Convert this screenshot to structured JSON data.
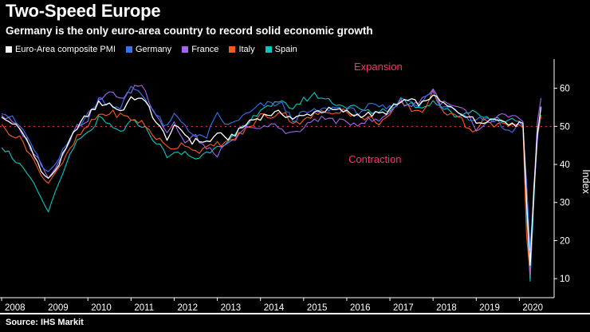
{
  "source": {
    "text": "Source: IHS Markit"
  },
  "chart_data": {
    "type": "line",
    "title": "Two-Speed Europe",
    "subtitle": "Germany is the only euro-area country to record solid economic growth",
    "ylabel": "Index",
    "ylim": [
      5,
      66
    ],
    "xlim": [
      2008,
      2020.75
    ],
    "yticks": [
      10,
      20,
      30,
      40,
      50,
      60
    ],
    "xticks": [
      2008,
      2009,
      2010,
      2011,
      2012,
      2013,
      2014,
      2015,
      2016,
      2017,
      2018,
      2019,
      2020
    ],
    "grid": false,
    "legend_position": "top",
    "refline": {
      "y": 50,
      "color": "#ff2e6e",
      "style": "dotted",
      "label_above": "Expansion",
      "label_below": "Contraction"
    },
    "series": [
      {
        "name": "Euro-Area composite PMI",
        "color": "#ffffff",
        "points": [
          [
            2008.0,
            52
          ],
          [
            2008.25,
            51
          ],
          [
            2008.5,
            48
          ],
          [
            2008.75,
            43
          ],
          [
            2008.92,
            38
          ],
          [
            2009.08,
            36.2
          ],
          [
            2009.25,
            38.5
          ],
          [
            2009.5,
            44
          ],
          [
            2009.75,
            50
          ],
          [
            2010.0,
            53
          ],
          [
            2010.25,
            56
          ],
          [
            2010.5,
            56
          ],
          [
            2010.75,
            54
          ],
          [
            2011.0,
            57
          ],
          [
            2011.17,
            57.8
          ],
          [
            2011.42,
            55
          ],
          [
            2011.58,
            51
          ],
          [
            2011.83,
            47
          ],
          [
            2012.0,
            49.5
          ],
          [
            2012.17,
            49
          ],
          [
            2012.42,
            46
          ],
          [
            2012.58,
            46.3
          ],
          [
            2012.83,
            45.8
          ],
          [
            2013.0,
            48.6
          ],
          [
            2013.17,
            46.5
          ],
          [
            2013.5,
            48.7
          ],
          [
            2013.75,
            51.5
          ],
          [
            2013.92,
            52.1
          ],
          [
            2014.17,
            53.2
          ],
          [
            2014.5,
            53.5
          ],
          [
            2014.75,
            52.1
          ],
          [
            2015.0,
            52.6
          ],
          [
            2015.25,
            53.9
          ],
          [
            2015.58,
            54.3
          ],
          [
            2015.92,
            54
          ],
          [
            2016.17,
            53.1
          ],
          [
            2016.5,
            53.1
          ],
          [
            2016.83,
            53.3
          ],
          [
            2017.0,
            54.4
          ],
          [
            2017.33,
            56.8
          ],
          [
            2017.58,
            56.3
          ],
          [
            2017.83,
            56
          ],
          [
            2018.0,
            58.8
          ],
          [
            2018.08,
            57.1
          ],
          [
            2018.33,
            55.2
          ],
          [
            2018.5,
            54.3
          ],
          [
            2018.83,
            52.7
          ],
          [
            2019.0,
            51
          ],
          [
            2019.25,
            51.9
          ],
          [
            2019.5,
            51.8
          ],
          [
            2019.67,
            51.9
          ],
          [
            2019.83,
            50.1
          ],
          [
            2020.0,
            51.3
          ],
          [
            2020.08,
            51.6
          ],
          [
            2020.17,
            29.7
          ],
          [
            2020.25,
            13.6
          ],
          [
            2020.33,
            31.9
          ],
          [
            2020.42,
            48.5
          ],
          [
            2020.5,
            54.9
          ],
          [
            2020.58,
            51.9
          ]
        ]
      },
      {
        "name": "Germany",
        "color": "#3276f5",
        "points": [
          [
            2008.0,
            54
          ],
          [
            2008.25,
            52
          ],
          [
            2008.5,
            49
          ],
          [
            2008.75,
            44
          ],
          [
            2008.92,
            39.5
          ],
          [
            2009.08,
            38
          ],
          [
            2009.25,
            40
          ],
          [
            2009.5,
            45
          ],
          [
            2009.75,
            50
          ],
          [
            2010.0,
            53
          ],
          [
            2010.25,
            57
          ],
          [
            2010.5,
            56
          ],
          [
            2010.75,
            55
          ],
          [
            2011.0,
            60
          ],
          [
            2011.17,
            59.5
          ],
          [
            2011.42,
            56
          ],
          [
            2011.58,
            53
          ],
          [
            2011.83,
            49.5
          ],
          [
            2012.0,
            53
          ],
          [
            2012.25,
            50.5
          ],
          [
            2012.5,
            47
          ],
          [
            2012.75,
            47.4
          ],
          [
            2013.0,
            53
          ],
          [
            2013.25,
            50
          ],
          [
            2013.5,
            52
          ],
          [
            2013.75,
            53.5
          ],
          [
            2014.0,
            55.5
          ],
          [
            2014.25,
            56
          ],
          [
            2014.5,
            55.7
          ],
          [
            2014.75,
            51.7
          ],
          [
            2015.0,
            53.5
          ],
          [
            2015.33,
            54
          ],
          [
            2015.75,
            55
          ],
          [
            2016.0,
            54.5
          ],
          [
            2016.25,
            53.6
          ],
          [
            2016.5,
            55.3
          ],
          [
            2016.75,
            55
          ],
          [
            2017.0,
            54.8
          ],
          [
            2017.33,
            57.4
          ],
          [
            2017.67,
            55.8
          ],
          [
            2018.0,
            59
          ],
          [
            2018.17,
            55.1
          ],
          [
            2018.5,
            54.8
          ],
          [
            2018.83,
            52.3
          ],
          [
            2019.0,
            52.1
          ],
          [
            2019.25,
            52.2
          ],
          [
            2019.5,
            51.4
          ],
          [
            2019.67,
            48.9
          ],
          [
            2019.92,
            49.4
          ],
          [
            2020.0,
            51.2
          ],
          [
            2020.08,
            50.7
          ],
          [
            2020.17,
            35
          ],
          [
            2020.25,
            17.4
          ],
          [
            2020.33,
            32.3
          ],
          [
            2020.42,
            47
          ],
          [
            2020.5,
            55.3
          ],
          [
            2020.58,
            54.4
          ]
        ]
      },
      {
        "name": "France",
        "color": "#a465f0",
        "points": [
          [
            2008.0,
            53
          ],
          [
            2008.25,
            51
          ],
          [
            2008.5,
            48
          ],
          [
            2008.75,
            43
          ],
          [
            2008.92,
            40
          ],
          [
            2009.08,
            36.5
          ],
          [
            2009.25,
            39
          ],
          [
            2009.5,
            45
          ],
          [
            2009.75,
            50
          ],
          [
            2010.0,
            52
          ],
          [
            2010.25,
            57
          ],
          [
            2010.58,
            59
          ],
          [
            2010.83,
            57
          ],
          [
            2011.08,
            60.5
          ],
          [
            2011.25,
            61
          ],
          [
            2011.5,
            55
          ],
          [
            2011.83,
            48.5
          ],
          [
            2012.0,
            51
          ],
          [
            2012.25,
            45.5
          ],
          [
            2012.5,
            47.5
          ],
          [
            2012.75,
            44
          ],
          [
            2013.0,
            42.7
          ],
          [
            2013.17,
            44.3
          ],
          [
            2013.5,
            47.4
          ],
          [
            2013.75,
            50.5
          ],
          [
            2014.0,
            48.9
          ],
          [
            2014.25,
            50.6
          ],
          [
            2014.5,
            49.3
          ],
          [
            2014.75,
            48.1
          ],
          [
            2015.0,
            49.3
          ],
          [
            2015.25,
            52
          ],
          [
            2015.58,
            52
          ],
          [
            2015.92,
            51
          ],
          [
            2016.25,
            50.9
          ],
          [
            2016.5,
            51.6
          ],
          [
            2016.75,
            51.4
          ],
          [
            2017.0,
            54.1
          ],
          [
            2017.25,
            56.6
          ],
          [
            2017.5,
            55.2
          ],
          [
            2017.75,
            57.4
          ],
          [
            2018.0,
            59.6
          ],
          [
            2018.17,
            56.3
          ],
          [
            2018.5,
            55
          ],
          [
            2018.75,
            54.1
          ],
          [
            2019.0,
            48.2
          ],
          [
            2019.17,
            50.4
          ],
          [
            2019.42,
            51.2
          ],
          [
            2019.58,
            52.9
          ],
          [
            2019.83,
            52.6
          ],
          [
            2020.0,
            52
          ],
          [
            2020.08,
            52
          ],
          [
            2020.17,
            28.9
          ],
          [
            2020.25,
            11.1
          ],
          [
            2020.33,
            32.1
          ],
          [
            2020.42,
            51.7
          ],
          [
            2020.5,
            57.3
          ],
          [
            2020.58,
            51.6
          ]
        ]
      },
      {
        "name": "Italy",
        "color": "#ff5a14",
        "points": [
          [
            2008.0,
            50
          ],
          [
            2008.25,
            48
          ],
          [
            2008.5,
            46
          ],
          [
            2008.75,
            41
          ],
          [
            2008.92,
            37
          ],
          [
            2009.08,
            35
          ],
          [
            2009.25,
            38
          ],
          [
            2009.5,
            42
          ],
          [
            2009.75,
            47
          ],
          [
            2010.0,
            50
          ],
          [
            2010.25,
            53
          ],
          [
            2010.58,
            53.5
          ],
          [
            2011.0,
            52
          ],
          [
            2011.25,
            51
          ],
          [
            2011.5,
            48
          ],
          [
            2011.83,
            44.5
          ],
          [
            2012.0,
            44.5
          ],
          [
            2012.25,
            45.6
          ],
          [
            2012.5,
            43.5
          ],
          [
            2012.75,
            44.1
          ],
          [
            2013.0,
            45.4
          ],
          [
            2013.25,
            45.8
          ],
          [
            2013.5,
            47.8
          ],
          [
            2013.75,
            49.7
          ],
          [
            2014.0,
            52.9
          ],
          [
            2014.25,
            52.6
          ],
          [
            2014.5,
            53.9
          ],
          [
            2014.75,
            51.2
          ],
          [
            2015.0,
            51.2
          ],
          [
            2015.25,
            53.1
          ],
          [
            2015.58,
            53.8
          ],
          [
            2015.92,
            54.3
          ],
          [
            2016.25,
            52.4
          ],
          [
            2016.5,
            52.2
          ],
          [
            2016.75,
            51.1
          ],
          [
            2017.0,
            52.8
          ],
          [
            2017.25,
            56.2
          ],
          [
            2017.5,
            54.5
          ],
          [
            2017.75,
            53.9
          ],
          [
            2018.0,
            59
          ],
          [
            2018.08,
            56
          ],
          [
            2018.33,
            53.5
          ],
          [
            2018.5,
            53.9
          ],
          [
            2018.83,
            49.3
          ],
          [
            2019.0,
            48.8
          ],
          [
            2019.17,
            51.5
          ],
          [
            2019.42,
            49.9
          ],
          [
            2019.58,
            51
          ],
          [
            2019.83,
            50.8
          ],
          [
            2020.0,
            50.4
          ],
          [
            2020.08,
            50.7
          ],
          [
            2020.17,
            20.2
          ],
          [
            2020.25,
            10.9
          ],
          [
            2020.33,
            33.9
          ],
          [
            2020.42,
            47.6
          ],
          [
            2020.5,
            52.5
          ],
          [
            2020.58,
            49.5
          ]
        ]
      },
      {
        "name": "Spain",
        "color": "#00c9c4",
        "points": [
          [
            2008.0,
            45
          ],
          [
            2008.25,
            42
          ],
          [
            2008.5,
            39
          ],
          [
            2008.75,
            35
          ],
          [
            2008.92,
            31
          ],
          [
            2009.08,
            27.5
          ],
          [
            2009.25,
            33
          ],
          [
            2009.5,
            40
          ],
          [
            2009.75,
            46
          ],
          [
            2010.0,
            48
          ],
          [
            2010.25,
            52
          ],
          [
            2010.5,
            50
          ],
          [
            2010.75,
            48.5
          ],
          [
            2011.0,
            51
          ],
          [
            2011.25,
            50.5
          ],
          [
            2011.5,
            47
          ],
          [
            2011.83,
            42.5
          ],
          [
            2012.0,
            42.5
          ],
          [
            2012.25,
            43
          ],
          [
            2012.5,
            41.5
          ],
          [
            2012.75,
            43
          ],
          [
            2013.0,
            45.3
          ],
          [
            2013.25,
            45.7
          ],
          [
            2013.5,
            48.6
          ],
          [
            2013.75,
            50.9
          ],
          [
            2014.0,
            54.8
          ],
          [
            2014.25,
            55.7
          ],
          [
            2014.5,
            55.9
          ],
          [
            2014.75,
            55
          ],
          [
            2015.0,
            56.9
          ],
          [
            2015.25,
            58.3
          ],
          [
            2015.58,
            56.9
          ],
          [
            2015.92,
            55.3
          ],
          [
            2016.25,
            54.8
          ],
          [
            2016.5,
            53.7
          ],
          [
            2016.75,
            54.1
          ],
          [
            2017.0,
            54.7
          ],
          [
            2017.25,
            57.3
          ],
          [
            2017.5,
            55.8
          ],
          [
            2017.75,
            55.1
          ],
          [
            2018.0,
            56.7
          ],
          [
            2018.17,
            55.4
          ],
          [
            2018.5,
            52.7
          ],
          [
            2018.83,
            53.7
          ],
          [
            2019.0,
            54.5
          ],
          [
            2019.17,
            52.1
          ],
          [
            2019.42,
            52.1
          ],
          [
            2019.58,
            51.7
          ],
          [
            2019.83,
            51.9
          ],
          [
            2020.0,
            51.5
          ],
          [
            2020.08,
            50.7
          ],
          [
            2020.17,
            26.7
          ],
          [
            2020.25,
            9.2
          ],
          [
            2020.33,
            29.2
          ],
          [
            2020.42,
            49.7
          ],
          [
            2020.5,
            52.8
          ],
          [
            2020.58,
            48.4
          ]
        ]
      }
    ]
  }
}
